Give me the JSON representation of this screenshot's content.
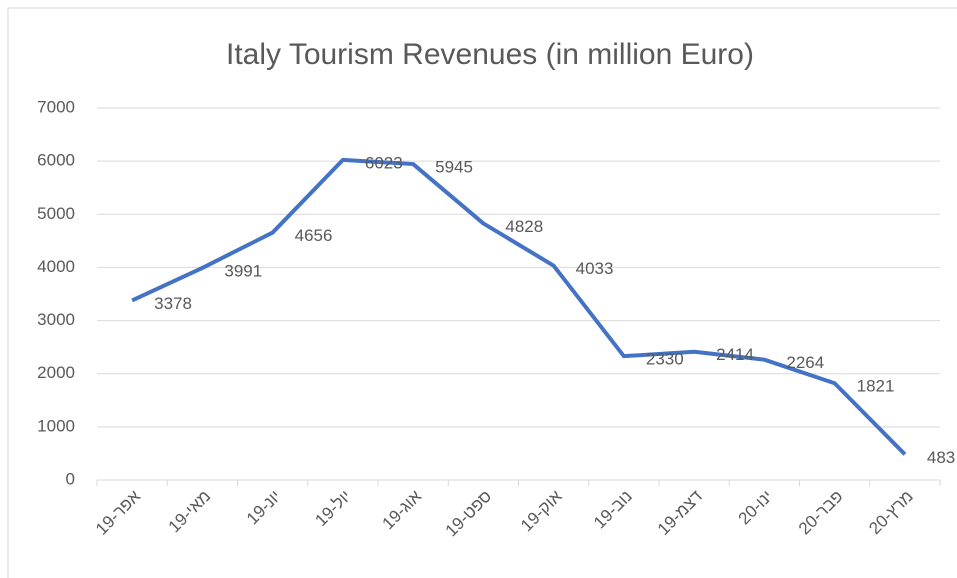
{
  "chart_data": {
    "type": "line",
    "title": "Italy Tourism Revenues  (in million Euro)",
    "categories": [
      "אפר-19",
      "מאי-19",
      "יונ-19",
      "יול-19",
      "אוג-19",
      "ספט-19",
      "אוק-19",
      "נוב-19",
      "דצמ-19",
      "ינו-20",
      "פבר-20",
      "מרץ-20"
    ],
    "series": [
      {
        "name": "Revenues",
        "color": "#4472c4",
        "values": [
          3378,
          3991,
          4656,
          6023,
          5945,
          4828,
          4033,
          2330,
          2414,
          2264,
          1821,
          483
        ]
      }
    ],
    "ylim": [
      0,
      7000
    ],
    "yticks": [
      0,
      1000,
      2000,
      3000,
      4000,
      5000,
      6000,
      7000
    ],
    "grid": true
  }
}
